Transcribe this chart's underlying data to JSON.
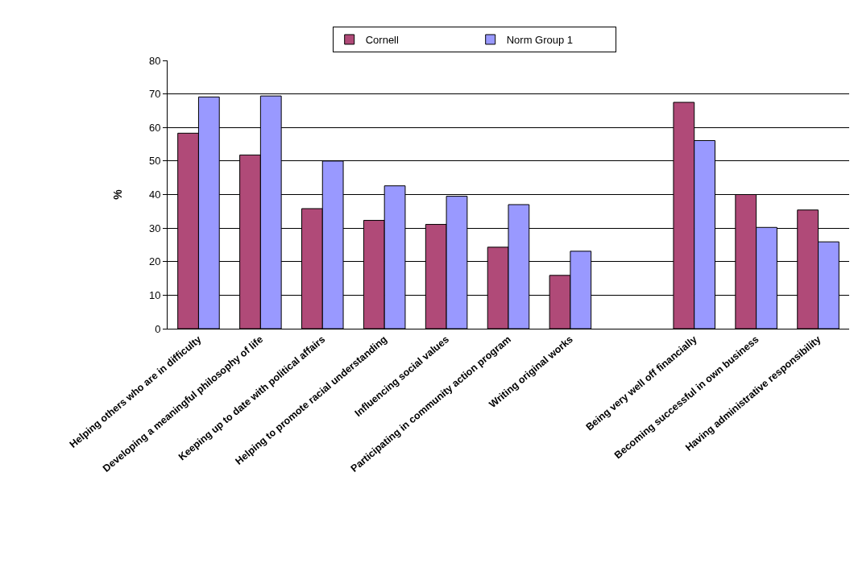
{
  "chart_data": {
    "type": "bar",
    "ylabel": "%",
    "categories": [
      "Helping others who are in difficulty",
      "Developing a meaningful philosophy of life",
      "Keeping up to date with political affairs",
      "Helping to promote racial understanding",
      "Influencing social values",
      "Participating in community action program",
      "Writing original works",
      null,
      "Being very well off financially",
      "Becoming successful in own business",
      "Having administrative responsibility"
    ],
    "series": [
      {
        "name": "Cornell",
        "color": "#b04a78",
        "values": [
          58.3,
          51.8,
          35.8,
          32.3,
          31.1,
          24.3,
          15.9,
          null,
          67.5,
          40.0,
          35.4
        ]
      },
      {
        "name": "Norm Group 1",
        "color": "#9999ff",
        "values": [
          69.1,
          69.4,
          50.0,
          42.6,
          39.5,
          37.0,
          23.1,
          null,
          56.1,
          30.2,
          25.9
        ]
      }
    ],
    "ylim": [
      0,
      80
    ],
    "yticks": [
      0,
      10,
      20,
      30,
      40,
      50,
      60,
      70,
      80
    ],
    "grid": "y",
    "legend": "top"
  }
}
